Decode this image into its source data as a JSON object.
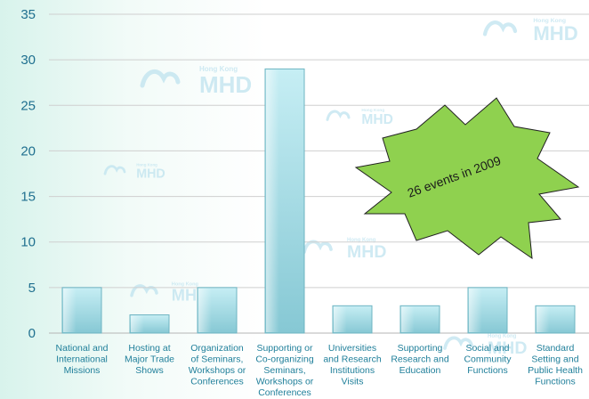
{
  "chart_data": {
    "type": "bar",
    "categories": [
      "National and International Missions",
      "Hosting at Major Trade Shows",
      "Organization of Seminars, Workshops or Conferences",
      "Supporting or Co-organizing Seminars, Workshops or Conferences",
      "Universities and Research Institutions Visits",
      "Supporting Research and Education",
      "Social and Community Functions",
      "Standard Setting and Public Health Functions"
    ],
    "category_lines": [
      [
        "National and",
        "International",
        "Missions"
      ],
      [
        "Hosting at",
        "Major Trade",
        "Shows"
      ],
      [
        "Organization",
        "of Seminars,",
        "Workshops or",
        "Conferences"
      ],
      [
        "Supporting or",
        "Co-organizing",
        "Seminars,",
        "Workshops or",
        "Conferences"
      ],
      [
        "Universities",
        "and Research",
        "Institutions",
        "Visits"
      ],
      [
        "Supporting",
        "Research and",
        "Education"
      ],
      [
        "Social and",
        "Community",
        "Functions"
      ],
      [
        "Standard",
        "Setting and",
        "Public Health",
        "Functions"
      ]
    ],
    "values": [
      5,
      2,
      5,
      29,
      3,
      3,
      5,
      3
    ],
    "ylim": [
      0,
      35
    ],
    "yticks": [
      "0",
      "5",
      "10",
      "15",
      "20",
      "25",
      "30",
      "35"
    ],
    "grid": true,
    "bar_color": "#aee0e8",
    "annotation": "26 events in 2009"
  },
  "callout": {
    "text": "26 events in 2009",
    "fill": "#8fd14f"
  },
  "watermark": {
    "text": "MHD",
    "subtext": "Hong Kong"
  }
}
